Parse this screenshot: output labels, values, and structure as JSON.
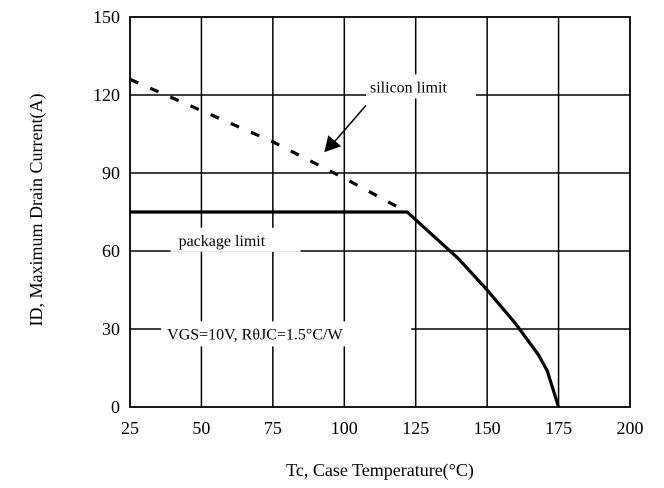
{
  "chart_data": {
    "type": "line",
    "title": "",
    "xlabel": "Tc, Case Temperature(°C)",
    "ylabel": "ID, Maximum Drain Current(A)",
    "xlim": [
      25,
      200
    ],
    "ylim": [
      0,
      150
    ],
    "x_ticks": [
      25,
      50,
      75,
      100,
      125,
      150,
      175,
      200
    ],
    "y_ticks": [
      0,
      30,
      60,
      90,
      120,
      150
    ],
    "x_tick_labels": [
      "25",
      "50",
      "75",
      "100",
      "125",
      "150",
      "175",
      "200"
    ],
    "y_tick_labels": [
      "0",
      "30",
      "60",
      "90",
      "120",
      "150"
    ],
    "grid": true,
    "series": [
      {
        "name": "silicon limit",
        "style": "dashed",
        "x": [
          25,
          50,
          75,
          100,
          122
        ],
        "y": [
          126,
          114,
          102,
          88,
          75
        ]
      },
      {
        "name": "package limit",
        "style": "solid",
        "x": [
          25,
          122,
          130,
          140,
          150,
          160,
          168,
          171,
          175
        ],
        "y": [
          75,
          75,
          67,
          57,
          45,
          32,
          20,
          14,
          0
        ]
      }
    ],
    "annotations": [
      {
        "text": "silicon limit",
        "arrow_to": [
          93,
          98
        ],
        "text_at": [
          109,
          121
        ]
      },
      {
        "text": "package limit",
        "text_at": [
          42,
          62
        ]
      },
      {
        "text": "VGS=10V, RθJC=1.5°C/W",
        "text_at": [
          38,
          26
        ]
      }
    ]
  }
}
